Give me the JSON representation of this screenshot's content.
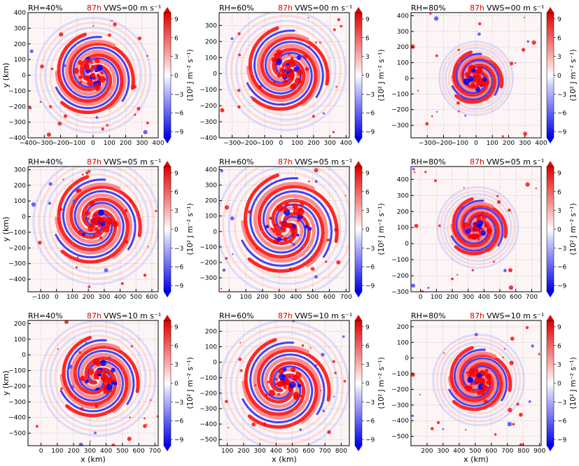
{
  "figure": {
    "time_label": "87h",
    "colorbar_label": "(10² J m⁻² s⁻¹)",
    "colorbar_ticks": [
      "9",
      "6",
      "3",
      "0",
      "−3",
      "−6",
      "−9"
    ],
    "colormap": {
      "negative": "#0000ff",
      "zero": "#ffffff",
      "positive": "#ff0000"
    }
  },
  "chart_data": [
    {
      "type": "heatmap",
      "rh": "RH=40%",
      "vws": "VWS=00 m s⁻¹",
      "xlim": [
        -400,
        400
      ],
      "ylim": [
        -400,
        400
      ],
      "xticks": [
        -400,
        -300,
        -200,
        -100,
        0,
        100,
        200,
        300,
        400
      ],
      "yticks": [
        -400,
        -300,
        -200,
        -100,
        0,
        100,
        200,
        300,
        400
      ],
      "xlabel": "",
      "ylabel": "y (km)",
      "clim": [
        -10,
        10
      ],
      "center": [
        0,
        0
      ],
      "radius": 250
    },
    {
      "type": "heatmap",
      "rh": "RH=60%",
      "vws": "VWS=00 m s⁻¹",
      "xlim": [
        -380,
        420
      ],
      "ylim": [
        -400,
        380
      ],
      "xticks": [
        -300,
        -200,
        -100,
        0,
        100,
        200,
        300,
        400
      ],
      "yticks": [
        -400,
        -300,
        -200,
        -100,
        0,
        100,
        200,
        300
      ],
      "xlabel": "",
      "ylabel": "",
      "clim": [
        -10,
        10
      ],
      "center": [
        30,
        20
      ],
      "radius": 260
    },
    {
      "type": "heatmap",
      "rh": "RH=80%",
      "vws": "VWS=00 m s⁻¹",
      "xlim": [
        -400,
        400
      ],
      "ylim": [
        -380,
        420
      ],
      "xticks": [
        -300,
        -200,
        -100,
        0,
        100,
        200,
        300,
        400
      ],
      "yticks": [
        -300,
        -200,
        -100,
        0,
        100,
        200,
        300,
        400
      ],
      "xlabel": "",
      "ylabel": "",
      "clim": [
        -10,
        10
      ],
      "center": [
        0,
        0
      ],
      "radius": 160
    },
    {
      "type": "heatmap",
      "rh": "RH=40%",
      "vws": "VWS=05 m s⁻¹",
      "xlim": [
        -180,
        640
      ],
      "ylim": [
        -480,
        320
      ],
      "xticks": [
        -100,
        0,
        100,
        200,
        300,
        400,
        500,
        600
      ],
      "yticks": [
        -400,
        -300,
        -200,
        -100,
        0,
        100,
        200,
        300
      ],
      "xlabel": "",
      "ylabel": "y (km)",
      "clim": [
        -10,
        10
      ],
      "center": [
        250,
        -30
      ],
      "radius": 280
    },
    {
      "type": "heatmap",
      "rh": "RH=60%",
      "vws": "VWS=05 m s⁻¹",
      "xlim": [
        -60,
        720
      ],
      "ylim": [
        -390,
        420
      ],
      "xticks": [
        0,
        100,
        200,
        300,
        400,
        500,
        600,
        700
      ],
      "yticks": [
        -300,
        -200,
        -100,
        0,
        100,
        200,
        300,
        400
      ],
      "xlabel": "",
      "ylabel": "",
      "clim": [
        -10,
        10
      ],
      "center": [
        350,
        40
      ],
      "radius": 300
    },
    {
      "type": "heatmap",
      "rh": "RH=80%",
      "vws": "VWS=05 m s⁻¹",
      "xlim": [
        -60,
        760
      ],
      "ylim": [
        -300,
        480
      ],
      "xticks": [
        0,
        100,
        200,
        300,
        400,
        500,
        600,
        700
      ],
      "yticks": [
        -300,
        -200,
        -100,
        0,
        100,
        200,
        300,
        400
      ],
      "xlabel": "",
      "ylabel": "",
      "clim": [
        -10,
        10
      ],
      "center": [
        360,
        100
      ],
      "radius": 180
    },
    {
      "type": "heatmap",
      "rh": "RH=40%",
      "vws": "VWS=10 m s⁻¹",
      "xlim": [
        -80,
        720
      ],
      "ylim": [
        -580,
        220
      ],
      "xticks": [
        0,
        100,
        200,
        300,
        400,
        500,
        600,
        700
      ],
      "yticks": [
        -500,
        -400,
        -300,
        -200,
        -100,
        0,
        100,
        200
      ],
      "xlabel": "x (km)",
      "ylabel": "y (km)",
      "clim": [
        -10,
        10
      ],
      "center": [
        350,
        -150
      ],
      "radius": 250
    },
    {
      "type": "heatmap",
      "rh": "RH=60%",
      "vws": "VWS=10 m s⁻¹",
      "xlim": [
        50,
        850
      ],
      "ylim": [
        -540,
        270
      ],
      "xticks": [
        100,
        200,
        300,
        400,
        500,
        600,
        700,
        800
      ],
      "yticks": [
        -500,
        -400,
        -300,
        -200,
        -100,
        0,
        100,
        200
      ],
      "xlabel": "x (km)",
      "ylabel": "",
      "clim": [
        -10,
        10
      ],
      "center": [
        450,
        -150
      ],
      "radius": 280
    },
    {
      "type": "heatmap",
      "rh": "RH=80%",
      "vws": "VWS=10 m s⁻¹",
      "xlim": [
        100,
        910
      ],
      "ylim": [
        -560,
        240
      ],
      "xticks": [
        200,
        300,
        400,
        500,
        600,
        700,
        800,
        900
      ],
      "yticks": [
        -500,
        -400,
        -300,
        -200,
        -100,
        0,
        100,
        200
      ],
      "xlabel": "x (km)",
      "ylabel": "",
      "clim": [
        -10,
        10
      ],
      "center": [
        520,
        -140
      ],
      "radius": 200
    }
  ]
}
